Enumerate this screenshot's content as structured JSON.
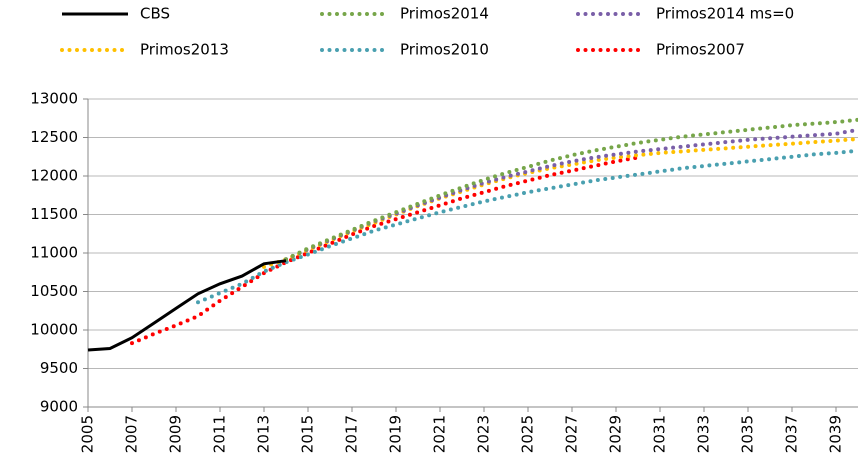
{
  "chart_data": {
    "type": "line",
    "x": [
      2005,
      2006,
      2007,
      2008,
      2009,
      2010,
      2011,
      2012,
      2013,
      2014,
      2015,
      2016,
      2017,
      2018,
      2019,
      2020,
      2021,
      2022,
      2023,
      2024,
      2025,
      2026,
      2027,
      2028,
      2029,
      2030,
      2031,
      2032,
      2033,
      2034,
      2035,
      2036,
      2037,
      2038,
      2039,
      2040
    ],
    "xlim": [
      2005,
      2040
    ],
    "xticks": [
      2005,
      2007,
      2009,
      2011,
      2013,
      2015,
      2017,
      2019,
      2021,
      2023,
      2025,
      2027,
      2029,
      2031,
      2033,
      2035,
      2037,
      2039
    ],
    "ylim": [
      9000,
      13000
    ],
    "yticks": [
      9000,
      9500,
      10000,
      10500,
      11000,
      11500,
      12000,
      12500,
      13000
    ],
    "grid": true,
    "series": [
      {
        "name": "CBS",
        "color": "#000000",
        "style": "solid",
        "values": [
          9740,
          9760,
          9900,
          10090,
          10280,
          10470,
          10600,
          10700,
          10860,
          10900,
          null,
          null,
          null,
          null,
          null,
          null,
          null,
          null,
          null,
          null,
          null,
          null,
          null,
          null,
          null,
          null,
          null,
          null,
          null,
          null,
          null,
          null,
          null,
          null,
          null,
          null
        ]
      },
      {
        "name": "Primos2014",
        "color": "#77a64a",
        "style": "dotted",
        "values": [
          null,
          null,
          null,
          null,
          null,
          null,
          null,
          null,
          null,
          10920,
          11060,
          11180,
          11300,
          11420,
          11530,
          11640,
          11750,
          11850,
          11950,
          12040,
          12120,
          12200,
          12270,
          12330,
          12380,
          12430,
          12470,
          12510,
          12540,
          12570,
          12600,
          12630,
          12660,
          12680,
          12700,
          12730
        ]
      },
      {
        "name": "Primos2014 ms=0",
        "color": "#7a5fa8",
        "style": "dotted",
        "values": [
          null,
          null,
          null,
          null,
          null,
          null,
          null,
          null,
          null,
          10920,
          11050,
          11170,
          11290,
          11410,
          11510,
          11620,
          11720,
          11820,
          11910,
          11990,
          12060,
          12130,
          12190,
          12240,
          12280,
          12320,
          12350,
          12380,
          12410,
          12440,
          12470,
          12490,
          12510,
          12530,
          12550,
          12600
        ]
      },
      {
        "name": "Primos2013",
        "color": "#ffc000",
        "style": "dotted",
        "values": [
          null,
          null,
          null,
          null,
          null,
          null,
          null,
          null,
          10820,
          10920,
          11040,
          11160,
          11280,
          11390,
          11500,
          11610,
          11710,
          11800,
          11890,
          11970,
          12040,
          12100,
          12150,
          12200,
          12240,
          12270,
          12300,
          12320,
          12340,
          12360,
          12380,
          12400,
          12420,
          12440,
          12460,
          12480
        ]
      },
      {
        "name": "Primos2010",
        "color": "#4aa0b0",
        "style": "dotted",
        "values": [
          null,
          null,
          null,
          null,
          null,
          10360,
          10480,
          10600,
          10760,
          10880,
          10980,
          11090,
          11190,
          11290,
          11370,
          11450,
          11530,
          11600,
          11670,
          11730,
          11790,
          11840,
          11890,
          11940,
          11980,
          12020,
          12060,
          12100,
          12130,
          12160,
          12190,
          12220,
          12250,
          12280,
          12300,
          12330
        ]
      },
      {
        "name": "Primos2007",
        "color": "#ff0000",
        "style": "dotted",
        "values": [
          null,
          null,
          9830,
          9950,
          10060,
          10180,
          10380,
          10560,
          10740,
          10880,
          11000,
          11120,
          11240,
          11350,
          11440,
          11530,
          11620,
          11710,
          11790,
          11870,
          11940,
          12010,
          12070,
          12130,
          12190,
          12240,
          null,
          null,
          null,
          null,
          null,
          null,
          null,
          null,
          null,
          null
        ]
      }
    ]
  }
}
